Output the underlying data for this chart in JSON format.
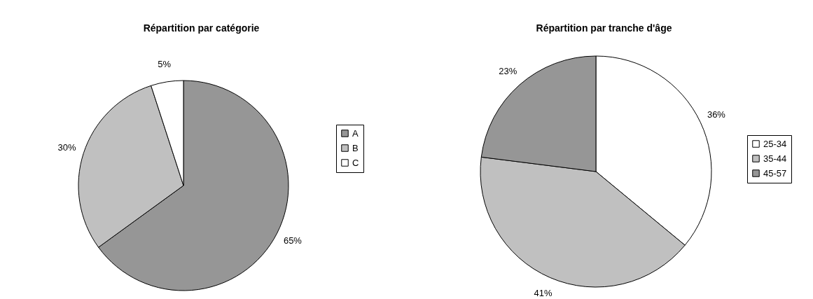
{
  "chart_data": [
    {
      "type": "pie",
      "title": "Répartition par catégorie",
      "categories": [
        "A",
        "B",
        "C"
      ],
      "values": [
        65,
        30,
        5
      ],
      "colors": [
        "#969696",
        "#c0c0c0",
        "#ffffff"
      ],
      "value_labels": [
        "65%",
        "30%",
        "5%"
      ],
      "legend": "right"
    },
    {
      "type": "pie",
      "title": "Répartition par tranche d'âge",
      "categories": [
        "25-34",
        "35-44",
        "45-57"
      ],
      "values": [
        36,
        41,
        23
      ],
      "colors": [
        "#ffffff",
        "#c0c0c0",
        "#969696"
      ],
      "value_labels": [
        "36%",
        "41%",
        "23%"
      ],
      "legend": "right"
    }
  ]
}
